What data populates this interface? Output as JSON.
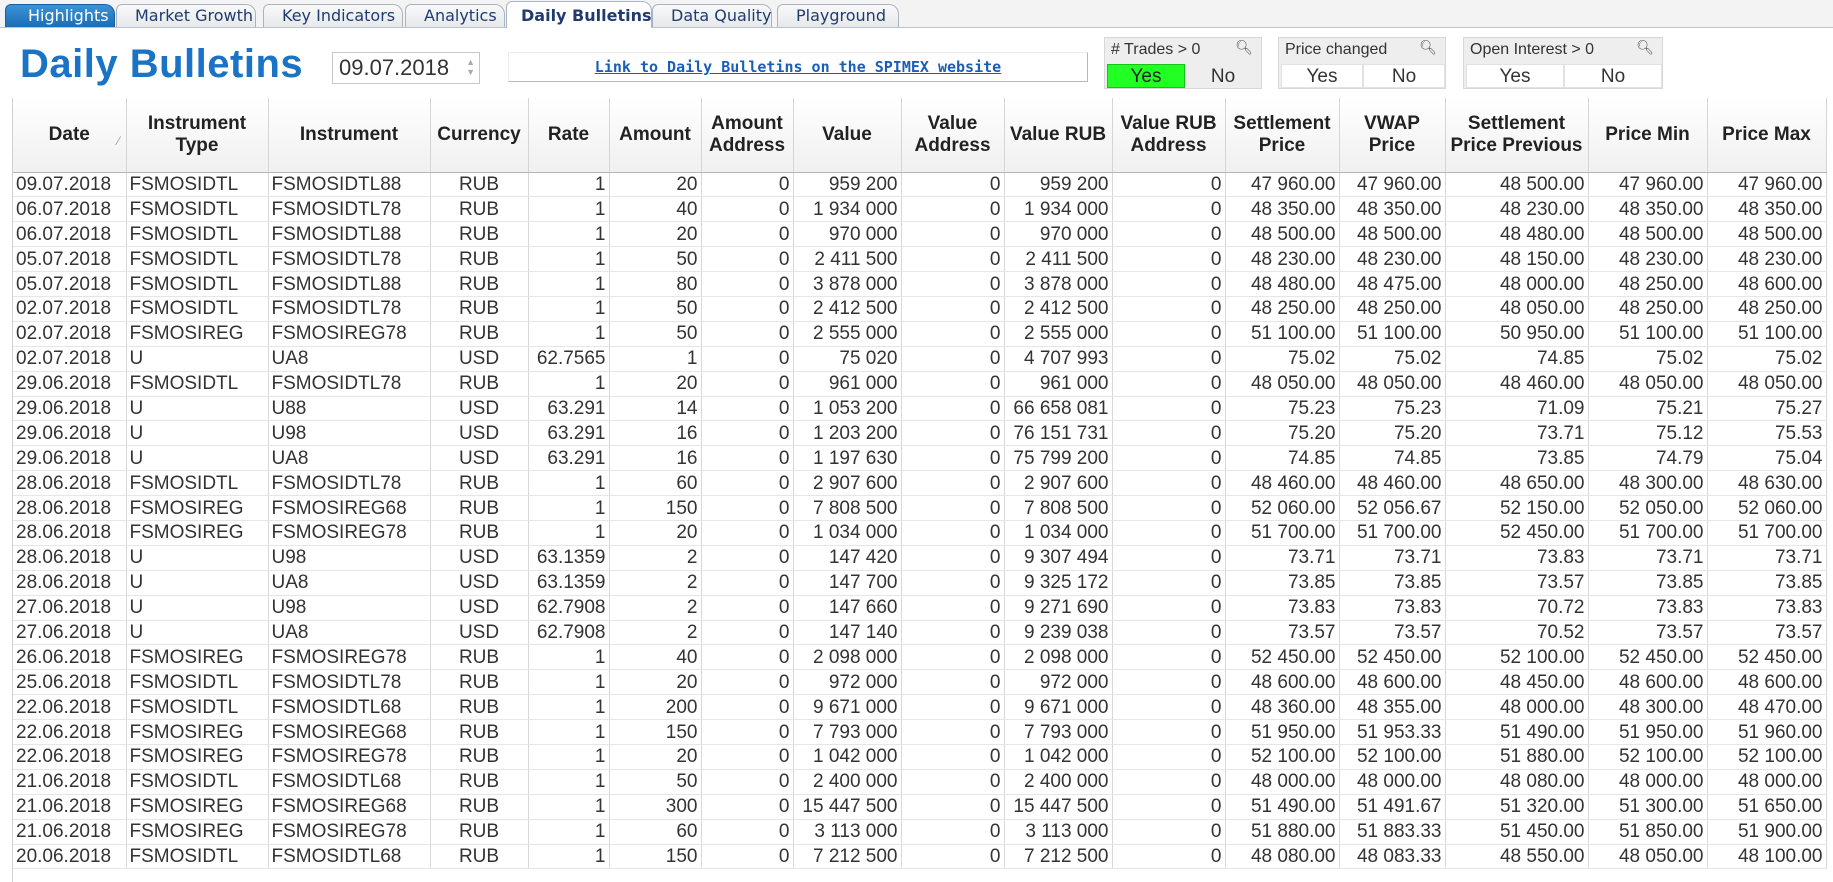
{
  "tabs": [
    {
      "label": "Highlights",
      "state": "highlight"
    },
    {
      "label": "Market Growth",
      "state": "normal"
    },
    {
      "label": "Key Indicators",
      "state": "normal"
    },
    {
      "label": "Analytics",
      "state": "normal"
    },
    {
      "label": "Daily Bulletins",
      "state": "active"
    },
    {
      "label": "Data Quality",
      "state": "normal"
    },
    {
      "label": "Playground",
      "state": "normal"
    }
  ],
  "header": {
    "title": "Daily Bulletins",
    "date_value": "09.07.2018",
    "link_text": "Link to Daily Bulletins on the SPIMEX website"
  },
  "filters": [
    {
      "title": "# Trades > 0",
      "yes": "Yes",
      "no": "No",
      "selected": "yes"
    },
    {
      "title": "Price changed",
      "yes": "Yes",
      "no": "No",
      "selected": "none"
    },
    {
      "title": "Open Interest > 0",
      "yes": "Yes",
      "no": "No",
      "selected": "none"
    }
  ],
  "table": {
    "columns": [
      "Date",
      "Instrument Type",
      "Instrument",
      "Currency",
      "Rate",
      "Amount",
      "Amount Address",
      "Value",
      "Value Address",
      "Value RUB",
      "Value RUB Address",
      "Settlement Price",
      "VWAP Price",
      "Settlement Price Previous",
      "Price Min",
      "Price Max"
    ],
    "rows": [
      [
        "09.07.2018",
        "FSMOSIDTL",
        "FSMOSIDTL88",
        "RUB",
        "1",
        "20",
        "0",
        "959 200",
        "0",
        "959 200",
        "0",
        "47 960.00",
        "47 960.00",
        "48 500.00",
        "47 960.00",
        "47 960.00"
      ],
      [
        "06.07.2018",
        "FSMOSIDTL",
        "FSMOSIDTL78",
        "RUB",
        "1",
        "40",
        "0",
        "1 934 000",
        "0",
        "1 934 000",
        "0",
        "48 350.00",
        "48 350.00",
        "48 230.00",
        "48 350.00",
        "48 350.00"
      ],
      [
        "06.07.2018",
        "FSMOSIDTL",
        "FSMOSIDTL88",
        "RUB",
        "1",
        "20",
        "0",
        "970 000",
        "0",
        "970 000",
        "0",
        "48 500.00",
        "48 500.00",
        "48 480.00",
        "48 500.00",
        "48 500.00"
      ],
      [
        "05.07.2018",
        "FSMOSIDTL",
        "FSMOSIDTL78",
        "RUB",
        "1",
        "50",
        "0",
        "2 411 500",
        "0",
        "2 411 500",
        "0",
        "48 230.00",
        "48 230.00",
        "48 150.00",
        "48 230.00",
        "48 230.00"
      ],
      [
        "05.07.2018",
        "FSMOSIDTL",
        "FSMOSIDTL88",
        "RUB",
        "1",
        "80",
        "0",
        "3 878 000",
        "0",
        "3 878 000",
        "0",
        "48 480.00",
        "48 475.00",
        "48 000.00",
        "48 250.00",
        "48 600.00"
      ],
      [
        "02.07.2018",
        "FSMOSIDTL",
        "FSMOSIDTL78",
        "RUB",
        "1",
        "50",
        "0",
        "2 412 500",
        "0",
        "2 412 500",
        "0",
        "48 250.00",
        "48 250.00",
        "48 050.00",
        "48 250.00",
        "48 250.00"
      ],
      [
        "02.07.2018",
        "FSMOSIREG",
        "FSMOSIREG78",
        "RUB",
        "1",
        "50",
        "0",
        "2 555 000",
        "0",
        "2 555 000",
        "0",
        "51 100.00",
        "51 100.00",
        "50 950.00",
        "51 100.00",
        "51 100.00"
      ],
      [
        "02.07.2018",
        "U",
        "UA8",
        "USD",
        "62.7565",
        "1",
        "0",
        "75 020",
        "0",
        "4 707 993",
        "0",
        "75.02",
        "75.02",
        "74.85",
        "75.02",
        "75.02"
      ],
      [
        "29.06.2018",
        "FSMOSIDTL",
        "FSMOSIDTL78",
        "RUB",
        "1",
        "20",
        "0",
        "961 000",
        "0",
        "961 000",
        "0",
        "48 050.00",
        "48 050.00",
        "48 460.00",
        "48 050.00",
        "48 050.00"
      ],
      [
        "29.06.2018",
        "U",
        "U88",
        "USD",
        "63.291",
        "14",
        "0",
        "1 053 200",
        "0",
        "66 658 081",
        "0",
        "75.23",
        "75.23",
        "71.09",
        "75.21",
        "75.27"
      ],
      [
        "29.06.2018",
        "U",
        "U98",
        "USD",
        "63.291",
        "16",
        "0",
        "1 203 200",
        "0",
        "76 151 731",
        "0",
        "75.20",
        "75.20",
        "73.71",
        "75.12",
        "75.53"
      ],
      [
        "29.06.2018",
        "U",
        "UA8",
        "USD",
        "63.291",
        "16",
        "0",
        "1 197 630",
        "0",
        "75 799 200",
        "0",
        "74.85",
        "74.85",
        "73.85",
        "74.79",
        "75.04"
      ],
      [
        "28.06.2018",
        "FSMOSIDTL",
        "FSMOSIDTL78",
        "RUB",
        "1",
        "60",
        "0",
        "2 907 600",
        "0",
        "2 907 600",
        "0",
        "48 460.00",
        "48 460.00",
        "48 650.00",
        "48 300.00",
        "48 630.00"
      ],
      [
        "28.06.2018",
        "FSMOSIREG",
        "FSMOSIREG68",
        "RUB",
        "1",
        "150",
        "0",
        "7 808 500",
        "0",
        "7 808 500",
        "0",
        "52 060.00",
        "52 056.67",
        "52 150.00",
        "52 050.00",
        "52 060.00"
      ],
      [
        "28.06.2018",
        "FSMOSIREG",
        "FSMOSIREG78",
        "RUB",
        "1",
        "20",
        "0",
        "1 034 000",
        "0",
        "1 034 000",
        "0",
        "51 700.00",
        "51 700.00",
        "52 450.00",
        "51 700.00",
        "51 700.00"
      ],
      [
        "28.06.2018",
        "U",
        "U98",
        "USD",
        "63.1359",
        "2",
        "0",
        "147 420",
        "0",
        "9 307 494",
        "0",
        "73.71",
        "73.71",
        "73.83",
        "73.71",
        "73.71"
      ],
      [
        "28.06.2018",
        "U",
        "UA8",
        "USD",
        "63.1359",
        "2",
        "0",
        "147 700",
        "0",
        "9 325 172",
        "0",
        "73.85",
        "73.85",
        "73.57",
        "73.85",
        "73.85"
      ],
      [
        "27.06.2018",
        "U",
        "U98",
        "USD",
        "62.7908",
        "2",
        "0",
        "147 660",
        "0",
        "9 271 690",
        "0",
        "73.83",
        "73.83",
        "70.72",
        "73.83",
        "73.83"
      ],
      [
        "27.06.2018",
        "U",
        "UA8",
        "USD",
        "62.7908",
        "2",
        "0",
        "147 140",
        "0",
        "9 239 038",
        "0",
        "73.57",
        "73.57",
        "70.52",
        "73.57",
        "73.57"
      ],
      [
        "26.06.2018",
        "FSMOSIREG",
        "FSMOSIREG78",
        "RUB",
        "1",
        "40",
        "0",
        "2 098 000",
        "0",
        "2 098 000",
        "0",
        "52 450.00",
        "52 450.00",
        "52 100.00",
        "52 450.00",
        "52 450.00"
      ],
      [
        "25.06.2018",
        "FSMOSIDTL",
        "FSMOSIDTL78",
        "RUB",
        "1",
        "20",
        "0",
        "972 000",
        "0",
        "972 000",
        "0",
        "48 600.00",
        "48 600.00",
        "48 450.00",
        "48 600.00",
        "48 600.00"
      ],
      [
        "22.06.2018",
        "FSMOSIDTL",
        "FSMOSIDTL68",
        "RUB",
        "1",
        "200",
        "0",
        "9 671 000",
        "0",
        "9 671 000",
        "0",
        "48 360.00",
        "48 355.00",
        "48 000.00",
        "48 300.00",
        "48 470.00"
      ],
      [
        "22.06.2018",
        "FSMOSIREG",
        "FSMOSIREG68",
        "RUB",
        "1",
        "150",
        "0",
        "7 793 000",
        "0",
        "7 793 000",
        "0",
        "51 950.00",
        "51 953.33",
        "51 490.00",
        "51 950.00",
        "51 960.00"
      ],
      [
        "22.06.2018",
        "FSMOSIREG",
        "FSMOSIREG78",
        "RUB",
        "1",
        "20",
        "0",
        "1 042 000",
        "0",
        "1 042 000",
        "0",
        "52 100.00",
        "52 100.00",
        "51 880.00",
        "52 100.00",
        "52 100.00"
      ],
      [
        "21.06.2018",
        "FSMOSIDTL",
        "FSMOSIDTL68",
        "RUB",
        "1",
        "50",
        "0",
        "2 400 000",
        "0",
        "2 400 000",
        "0",
        "48 000.00",
        "48 000.00",
        "48 080.00",
        "48 000.00",
        "48 000.00"
      ],
      [
        "21.06.2018",
        "FSMOSIREG",
        "FSMOSIREG68",
        "RUB",
        "1",
        "300",
        "0",
        "15 447 500",
        "0",
        "15 447 500",
        "0",
        "51 490.00",
        "51 491.67",
        "51 320.00",
        "51 300.00",
        "51 650.00"
      ],
      [
        "21.06.2018",
        "FSMOSIREG",
        "FSMOSIREG78",
        "RUB",
        "1",
        "60",
        "0",
        "3 113 000",
        "0",
        "3 113 000",
        "0",
        "51 880.00",
        "51 883.33",
        "51 450.00",
        "51 850.00",
        "51 900.00"
      ],
      [
        "20.06.2018",
        "FSMOSIDTL",
        "FSMOSIDTL68",
        "RUB",
        "1",
        "150",
        "0",
        "7 212 500",
        "0",
        "7 212 500",
        "0",
        "48 080.00",
        "48 083.33",
        "48 550.00",
        "48 050.00",
        "48 100.00"
      ]
    ]
  },
  "icons": {
    "search": "search-icon",
    "sort": "sort-icon"
  },
  "colors": {
    "title": "#1a73c5",
    "selected_filter": "#22ff22",
    "highlight_tab": "#1c6db5"
  }
}
